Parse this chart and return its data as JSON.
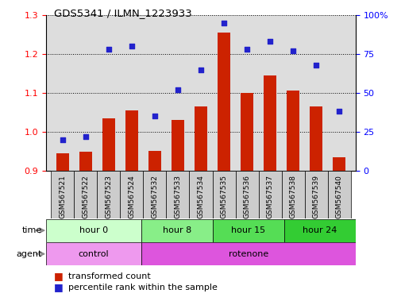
{
  "title": "GDS5341 / ILMN_1223933",
  "samples": [
    "GSM567521",
    "GSM567522",
    "GSM567523",
    "GSM567524",
    "GSM567532",
    "GSM567533",
    "GSM567534",
    "GSM567535",
    "GSM567536",
    "GSM567537",
    "GSM567538",
    "GSM567539",
    "GSM567540"
  ],
  "transformed_count": [
    0.945,
    0.948,
    1.035,
    1.055,
    0.95,
    1.03,
    1.065,
    1.255,
    1.1,
    1.145,
    1.105,
    1.065,
    0.935
  ],
  "percentile_rank": [
    20,
    22,
    78,
    80,
    35,
    52,
    65,
    95,
    78,
    83,
    77,
    68,
    38
  ],
  "ylim_left": [
    0.9,
    1.3
  ],
  "ylim_right": [
    0,
    100
  ],
  "yticks_left": [
    0.9,
    1.0,
    1.1,
    1.2,
    1.3
  ],
  "yticks_right": [
    0,
    25,
    50,
    75,
    100
  ],
  "ytick_labels_right": [
    "0",
    "25",
    "50",
    "75",
    "100%"
  ],
  "bar_color": "#cc2200",
  "dot_color": "#2222cc",
  "grid_color": "#000000",
  "time_groups": [
    {
      "label": "hour 0",
      "start": 0,
      "end": 4,
      "color": "#ccffcc"
    },
    {
      "label": "hour 8",
      "start": 4,
      "end": 7,
      "color": "#88ee88"
    },
    {
      "label": "hour 15",
      "start": 7,
      "end": 10,
      "color": "#55dd55"
    },
    {
      "label": "hour 24",
      "start": 10,
      "end": 13,
      "color": "#33cc33"
    }
  ],
  "agent_groups": [
    {
      "label": "control",
      "start": 0,
      "end": 4,
      "color": "#ee99ee"
    },
    {
      "label": "rotenone",
      "start": 4,
      "end": 13,
      "color": "#dd55dd"
    }
  ],
  "legend_bar_label": "transformed count",
  "legend_dot_label": "percentile rank within the sample",
  "time_label": "time",
  "agent_label": "agent",
  "background_color": "#ffffff",
  "plot_bg_color": "#dddddd",
  "xticklabel_bg": "#cccccc"
}
